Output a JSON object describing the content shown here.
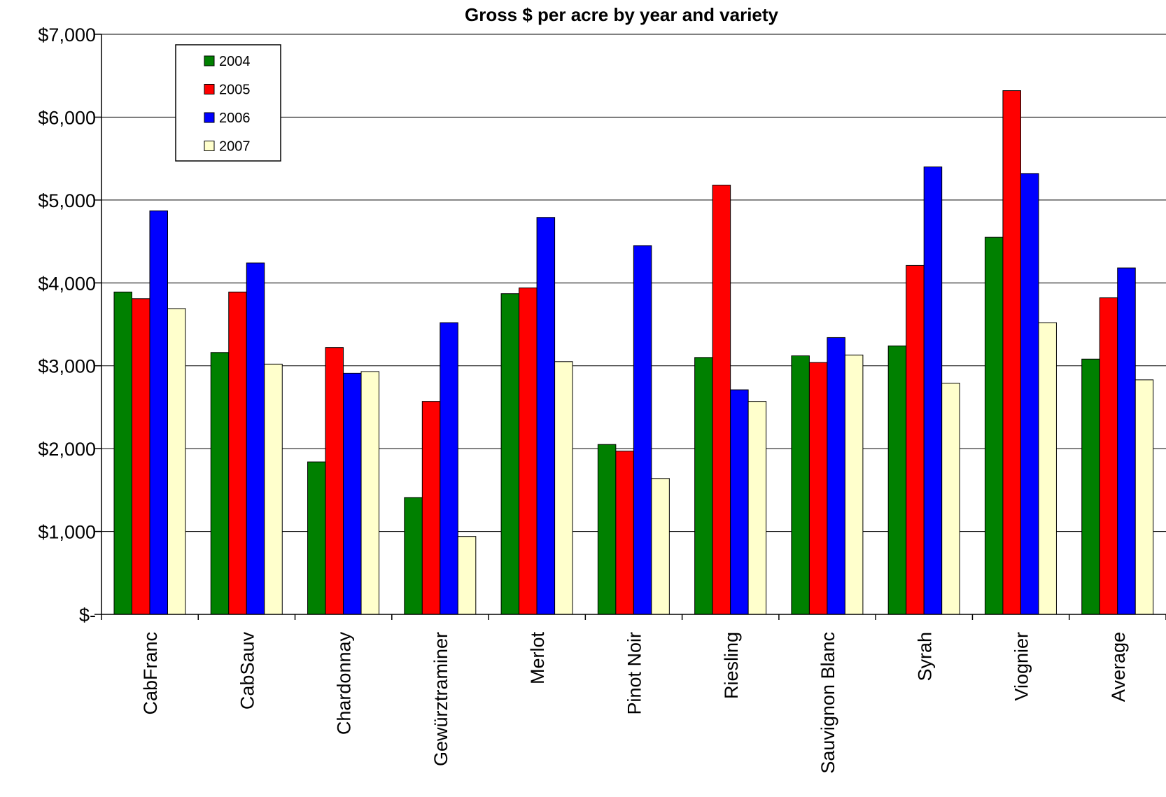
{
  "chart_data": {
    "type": "bar",
    "title": "Gross $ per acre by year and variety",
    "xlabel": "",
    "ylabel": "",
    "ylim": [
      0,
      7000
    ],
    "y_ticks": [
      0,
      1000,
      2000,
      3000,
      4000,
      5000,
      6000,
      7000
    ],
    "y_tick_labels": [
      "$-",
      "$1,000",
      "$2,000",
      "$3,000",
      "$4,000",
      "$5,000",
      "$6,000",
      "$7,000"
    ],
    "grid": true,
    "legend_position": "top-left",
    "categories": [
      "CabFranc",
      "CabSauv",
      "Chardonnay",
      "Gewürztraminer",
      "Merlot",
      "Pinot Noir",
      "Riesling",
      "Sauvignon Blanc",
      "Syrah",
      "Viognier",
      "Average"
    ],
    "series": [
      {
        "name": "2004",
        "color": "#008000",
        "values": [
          3890,
          3160,
          1840,
          1410,
          3870,
          2050,
          3100,
          3120,
          3240,
          4550,
          3080
        ]
      },
      {
        "name": "2005",
        "color": "#ff0000",
        "values": [
          3810,
          3890,
          3220,
          2570,
          3940,
          1970,
          5180,
          3040,
          4210,
          6320,
          3820
        ]
      },
      {
        "name": "2006",
        "color": "#0000ff",
        "values": [
          4870,
          4240,
          2910,
          3520,
          4790,
          4450,
          2710,
          3340,
          5400,
          5320,
          4180
        ]
      },
      {
        "name": "2007",
        "color": "#ffffcc",
        "values": [
          3690,
          3020,
          2930,
          940,
          3050,
          1640,
          2570,
          3130,
          2790,
          3520,
          2830
        ]
      }
    ]
  }
}
